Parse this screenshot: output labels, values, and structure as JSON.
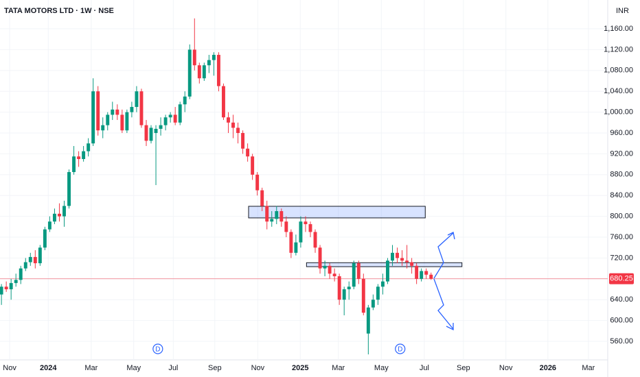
{
  "chart_data": {
    "type": "candlestick",
    "title": "TATA MOTORS LTD · 1W · NSE",
    "currency": "INR",
    "x": [
      0,
      1,
      2,
      3,
      4,
      5,
      6,
      7,
      8,
      9,
      10,
      11,
      12,
      13,
      14,
      15,
      16,
      17,
      18,
      19,
      20,
      21,
      22,
      23,
      24,
      25,
      26,
      27,
      28,
      29,
      30,
      31,
      32,
      33,
      34,
      35,
      36,
      37,
      38,
      39,
      40,
      41,
      42,
      43,
      44,
      45,
      46,
      47,
      48,
      49,
      50,
      51,
      52,
      53,
      54,
      55,
      56,
      57,
      58,
      59,
      60,
      61,
      62,
      63,
      64,
      65,
      66,
      67,
      68,
      69,
      70,
      71,
      72,
      73,
      74,
      75,
      76,
      77,
      78,
      79,
      80,
      81,
      82,
      83,
      84,
      85,
      86,
      87,
      88,
      89
    ],
    "open": [
      650,
      665,
      660,
      672,
      678,
      700,
      712,
      722,
      710,
      740,
      775,
      790,
      805,
      800,
      820,
      885,
      915,
      910,
      925,
      940,
      1040,
      965,
      975,
      995,
      1005,
      995,
      965,
      1000,
      1010,
      1040,
      975,
      945,
      960,
      968,
      975,
      990,
      995,
      980,
      1015,
      1030,
      1120,
      1090,
      1065,
      1090,
      1100,
      1110,
      1050,
      990,
      980,
      970,
      960,
      930,
      915,
      880,
      850,
      820,
      790,
      795,
      810,
      790,
      770,
      730,
      750,
      790,
      785,
      770,
      740,
      700,
      705,
      690,
      685,
      640,
      660,
      665,
      710,
      680,
      575,
      625,
      640,
      665,
      675,
      715,
      730,
      720,
      715,
      712,
      705,
      680,
      695,
      688
    ],
    "high": [
      670,
      675,
      680,
      690,
      705,
      720,
      730,
      735,
      745,
      780,
      800,
      815,
      825,
      830,
      890,
      935,
      925,
      935,
      950,
      1065,
      1050,
      990,
      1000,
      1020,
      1015,
      1005,
      1005,
      1020,
      1050,
      1045,
      985,
      975,
      975,
      990,
      995,
      1000,
      1010,
      1020,
      1040,
      1130,
      1180,
      1095,
      1095,
      1110,
      1115,
      1115,
      1055,
      1000,
      995,
      980,
      965,
      940,
      920,
      885,
      855,
      830,
      810,
      820,
      815,
      800,
      775,
      765,
      800,
      800,
      790,
      775,
      745,
      715,
      710,
      700,
      690,
      665,
      675,
      715,
      715,
      690,
      630,
      650,
      670,
      690,
      720,
      745,
      740,
      735,
      745,
      720,
      710,
      700,
      700,
      692
    ],
    "low": [
      630,
      655,
      640,
      665,
      670,
      695,
      705,
      700,
      705,
      735,
      770,
      785,
      790,
      780,
      815,
      880,
      895,
      905,
      915,
      935,
      955,
      950,
      965,
      985,
      985,
      960,
      960,
      990,
      1000,
      970,
      935,
      940,
      860,
      955,
      965,
      980,
      975,
      975,
      1000,
      1025,
      1080,
      1055,
      1060,
      1075,
      1070,
      1040,
      985,
      960,
      950,
      940,
      920,
      905,
      870,
      840,
      810,
      775,
      780,
      785,
      780,
      760,
      720,
      725,
      740,
      770,
      760,
      730,
      690,
      685,
      680,
      675,
      630,
      610,
      640,
      660,
      670,
      610,
      535,
      620,
      630,
      650,
      670,
      705,
      710,
      705,
      700,
      690,
      670,
      675,
      680,
      678
    ],
    "close": [
      665,
      660,
      672,
      678,
      700,
      712,
      722,
      710,
      740,
      775,
      790,
      805,
      800,
      820,
      885,
      915,
      910,
      925,
      940,
      1040,
      965,
      975,
      995,
      1005,
      995,
      965,
      1000,
      1010,
      1040,
      975,
      945,
      970,
      968,
      975,
      990,
      995,
      980,
      1015,
      1030,
      1120,
      1090,
      1065,
      1090,
      1100,
      1110,
      1050,
      990,
      980,
      970,
      960,
      930,
      915,
      880,
      850,
      820,
      790,
      795,
      810,
      790,
      770,
      730,
      750,
      790,
      785,
      770,
      740,
      700,
      705,
      690,
      685,
      640,
      660,
      665,
      710,
      680,
      615,
      625,
      640,
      665,
      675,
      715,
      730,
      720,
      715,
      712,
      705,
      680,
      695,
      688,
      680.25
    ],
    "up_color": "#089981",
    "down_color": "#f23645",
    "last_price": {
      "value": 680.25,
      "label": "680.25"
    },
    "zones": [
      {
        "x": [
          51.2,
          87.8
        ],
        "y": [
          797,
          819.3
        ]
      },
      {
        "x": [
          63.2,
          95.4
        ],
        "y": [
          703.4,
          711
        ]
      }
    ],
    "events": [
      {
        "x": 32.4,
        "label": "D"
      },
      {
        "x": 82.6,
        "label": "D"
      }
    ],
    "xlim": [
      -0.3,
      125.6
    ],
    "xticks": [
      {
        "value": 1.7,
        "label": "Nov"
      },
      {
        "value": 9.7,
        "label": "2024"
      },
      {
        "value": 18.6,
        "label": "Mar"
      },
      {
        "value": 27.4,
        "label": "May"
      },
      {
        "value": 35.6,
        "label": "Jul"
      },
      {
        "value": 44.2,
        "label": "Sep"
      },
      {
        "value": 53.1,
        "label": "Nov"
      },
      {
        "value": 61.9,
        "label": "2025"
      },
      {
        "value": 69.8,
        "label": "Mar"
      },
      {
        "value": 78.7,
        "label": "May"
      },
      {
        "value": 87.6,
        "label": "Jul"
      },
      {
        "value": 95.7,
        "label": "Sep"
      },
      {
        "value": 104.5,
        "label": "Nov"
      },
      {
        "value": 113.2,
        "label": "2026"
      },
      {
        "value": 121.6,
        "label": "Mar"
      }
    ],
    "ylim": [
      524.5,
      1215.3
    ],
    "yticks": [
      {
        "value": 560,
        "label": "560.00"
      },
      {
        "value": 600,
        "label": "600.00"
      },
      {
        "value": 640,
        "label": "640.00"
      },
      {
        "value": 680,
        "label": "680.00"
      },
      {
        "value": 720,
        "label": "720.00"
      },
      {
        "value": 760,
        "label": "760.00"
      },
      {
        "value": 800,
        "label": "800.00"
      },
      {
        "value": 840,
        "label": "840.00"
      },
      {
        "value": 880,
        "label": "880.00"
      },
      {
        "value": 920,
        "label": "920.00"
      },
      {
        "value": 960,
        "label": "960.00"
      },
      {
        "value": 1000,
        "label": "1,000.00"
      },
      {
        "value": 1040,
        "label": "1,040.00"
      },
      {
        "value": 1080,
        "label": "1,080.00"
      },
      {
        "value": 1120,
        "label": "1,120.00"
      },
      {
        "value": 1160,
        "label": "1,160.00"
      }
    ],
    "grid": true
  }
}
